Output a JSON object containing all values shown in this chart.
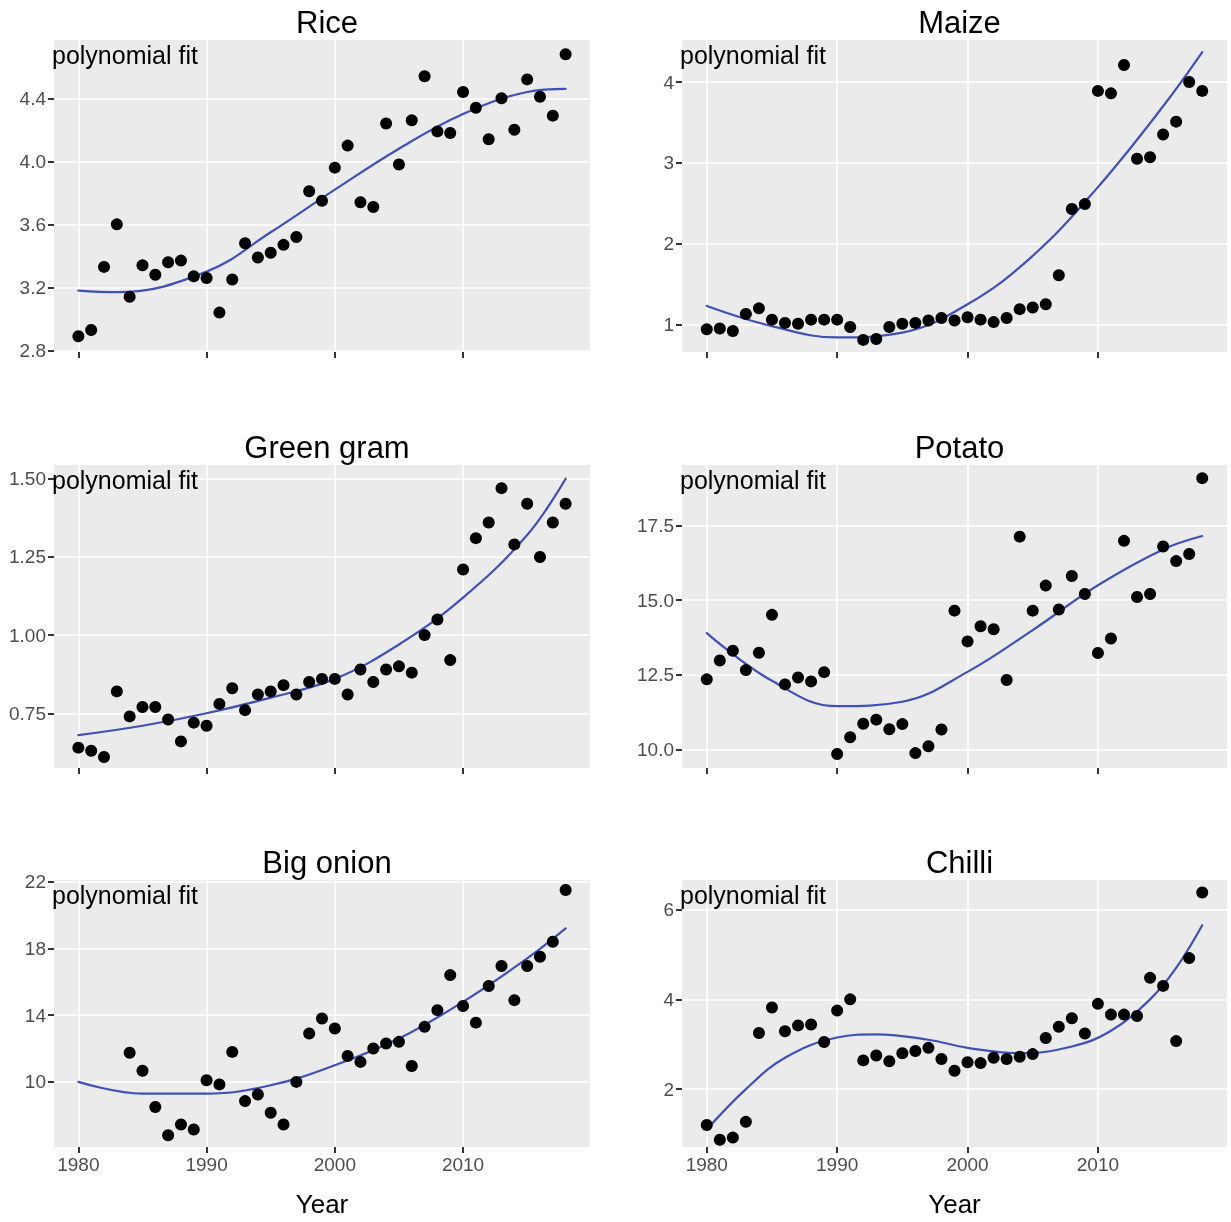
{
  "chart_data": [
    {
      "type": "scatter",
      "title": "Rice",
      "annotations": [
        "polynomial fit"
      ],
      "grid": true,
      "tick_labels": "y",
      "xlim": [
        1978.1,
        2019.9
      ],
      "ylim": [
        2.79,
        4.77
      ],
      "xticks": [
        {
          "value": 1980,
          "label": null
        },
        {
          "value": 1990,
          "label": null
        },
        {
          "value": 2000,
          "label": null
        },
        {
          "value": 2010,
          "label": null
        }
      ],
      "yticks": [
        2.8,
        3.2,
        3.6,
        {
          "value": 4,
          "label": "4.0"
        },
        4.4
      ],
      "series": [
        {
          "marker": "circle",
          "color": "#000000",
          "x": [
            1980,
            1981,
            1982,
            1983,
            1984,
            1985,
            1986,
            1987,
            1988,
            1989,
            1990,
            1991,
            1992,
            1993,
            1994,
            1995,
            1996,
            1997,
            1998,
            1999,
            2000,
            2001,
            2002,
            2003,
            2004,
            2005,
            2006,
            2007,
            2008,
            2009,
            2010,
            2011,
            2012,
            2013,
            2014,
            2015,
            2016,
            2017,
            2018
          ],
          "values": [
            2.89,
            2.93,
            3.33,
            3.6,
            3.14,
            3.34,
            3.28,
            3.36,
            3.37,
            3.27,
            3.26,
            3.04,
            3.25,
            3.48,
            3.39,
            3.42,
            3.47,
            3.52,
            3.81,
            3.75,
            3.96,
            4.1,
            3.74,
            3.71,
            4.24,
            3.98,
            4.26,
            4.54,
            4.19,
            4.18,
            4.44,
            4.34,
            4.14,
            4.4,
            4.2,
            4.52,
            4.41,
            4.29,
            4.68
          ]
        },
        {
          "type": "line",
          "marker": "none",
          "color": "#3f51b5",
          "x": [
            1980,
            1983,
            1990,
            1995,
            2000,
            2005,
            2010,
            2015,
            2018
          ],
          "values": [
            3.18,
            3.17,
            3.3,
            3.55,
            3.82,
            4.08,
            4.3,
            4.44,
            4.46
          ]
        }
      ]
    },
    {
      "type": "scatter",
      "title": "Maize",
      "annotations": [
        "polynomial fit"
      ],
      "grid": true,
      "tick_labels": "y",
      "xlim": [
        1978.1,
        2019.9
      ],
      "ylim": [
        0.66,
        4.52
      ],
      "xticks": [
        {
          "value": 1980,
          "label": null
        },
        {
          "value": 1990,
          "label": null
        },
        {
          "value": 2000,
          "label": null
        },
        {
          "value": 2010,
          "label": null
        }
      ],
      "yticks": [
        1,
        2,
        3,
        4
      ],
      "series": [
        {
          "marker": "circle",
          "color": "#000000",
          "x": [
            1980,
            1981,
            1982,
            1983,
            1984,
            1985,
            1986,
            1987,
            1988,
            1989,
            1990,
            1991,
            1992,
            1993,
            1994,
            1995,
            1996,
            1997,
            1998,
            1999,
            2000,
            2001,
            2002,
            2003,
            2004,
            2005,
            2006,
            2007,
            2008,
            2009,
            2010,
            2011,
            2012,
            2013,
            2014,
            2015,
            2016,
            2017,
            2018
          ],
          "values": [
            0.94,
            0.95,
            0.92,
            1.13,
            1.2,
            1.06,
            1.02,
            1.01,
            1.06,
            1.06,
            1.06,
            0.97,
            0.81,
            0.82,
            0.97,
            1.01,
            1.02,
            1.05,
            1.08,
            1.05,
            1.09,
            1.06,
            1.03,
            1.08,
            1.19,
            1.21,
            1.25,
            1.61,
            2.43,
            2.49,
            3.89,
            3.86,
            4.21,
            3.05,
            3.07,
            3.35,
            3.51,
            4.0,
            3.89
          ]
        },
        {
          "type": "line",
          "marker": "none",
          "color": "#3f51b5",
          "x": [
            1980,
            1985,
            1990,
            1995,
            2000,
            2005,
            2010,
            2015,
            2018
          ],
          "values": [
            1.23,
            0.98,
            0.84,
            0.9,
            1.25,
            1.85,
            2.7,
            3.7,
            4.37
          ]
        }
      ]
    },
    {
      "type": "scatter",
      "title": "Green gram",
      "annotations": [
        "polynomial fit"
      ],
      "grid": true,
      "tick_labels": "y",
      "xlim": [
        1978.1,
        2019.9
      ],
      "ylim": [
        0.575,
        1.544
      ],
      "xticks": [
        {
          "value": 1980,
          "label": null
        },
        {
          "value": 1990,
          "label": null
        },
        {
          "value": 2000,
          "label": null
        },
        {
          "value": 2010,
          "label": null
        }
      ],
      "yticks": [
        {
          "value": 0.75,
          "label": "0.75"
        },
        {
          "value": 1,
          "label": "1.00"
        },
        {
          "value": 1.25,
          "label": "1.25"
        },
        {
          "value": 1.5,
          "label": "1.50"
        }
      ],
      "series": [
        {
          "marker": "circle",
          "color": "#000000",
          "x": [
            1980,
            1981,
            1982,
            1983,
            1984,
            1985,
            1986,
            1987,
            1988,
            1989,
            1990,
            1991,
            1992,
            1993,
            1994,
            1995,
            1996,
            1997,
            1998,
            1999,
            2000,
            2001,
            2002,
            2003,
            2004,
            2005,
            2006,
            2007,
            2008,
            2009,
            2010,
            2011,
            2012,
            2013,
            2014,
            2015,
            2016,
            2017,
            2018
          ],
          "values": [
            0.64,
            0.63,
            0.61,
            0.82,
            0.74,
            0.77,
            0.77,
            0.73,
            0.66,
            0.72,
            0.71,
            0.78,
            0.83,
            0.76,
            0.81,
            0.82,
            0.84,
            0.81,
            0.85,
            0.86,
            0.86,
            0.81,
            0.89,
            0.85,
            0.89,
            0.9,
            0.88,
            1.0,
            1.05,
            0.92,
            1.21,
            1.31,
            1.36,
            1.47,
            1.29,
            1.42,
            1.25,
            1.36,
            1.42
          ]
        },
        {
          "type": "line",
          "marker": "none",
          "color": "#3f51b5",
          "x": [
            1980,
            1985,
            1990,
            1995,
            2000,
            2005,
            2010,
            2015,
            2018
          ],
          "values": [
            0.68,
            0.71,
            0.75,
            0.8,
            0.86,
            0.97,
            1.12,
            1.32,
            1.5
          ]
        }
      ]
    },
    {
      "type": "scatter",
      "title": "Potato",
      "annotations": [
        "polynomial fit"
      ],
      "grid": true,
      "tick_labels": "y",
      "xlim": [
        1978.1,
        2019.9
      ],
      "ylim": [
        9.38,
        19.53
      ],
      "xticks": [
        {
          "value": 1980,
          "label": null
        },
        {
          "value": 1990,
          "label": null
        },
        {
          "value": 2000,
          "label": null
        },
        {
          "value": 2010,
          "label": null
        }
      ],
      "yticks": [
        {
          "value": 10,
          "label": "10.0"
        },
        {
          "value": 12.5,
          "label": "12.5"
        },
        {
          "value": 15,
          "label": "15.0"
        },
        {
          "value": 17.5,
          "label": "17.5"
        }
      ],
      "series": [
        {
          "marker": "circle",
          "color": "#000000",
          "x": [
            1980,
            1981,
            1982,
            1983,
            1984,
            1985,
            1986,
            1987,
            1988,
            1989,
            1990,
            1991,
            1992,
            1993,
            1994,
            1995,
            1996,
            1997,
            1998,
            1999,
            2000,
            2001,
            2002,
            2003,
            2004,
            2005,
            2006,
            2007,
            2008,
            2009,
            2010,
            2011,
            2012,
            2013,
            2014,
            2015,
            2016,
            2017,
            2018
          ],
          "values": [
            12.35,
            12.98,
            13.31,
            12.66,
            13.24,
            14.51,
            12.18,
            12.41,
            12.28,
            12.59,
            9.85,
            10.41,
            10.86,
            11.0,
            10.68,
            10.85,
            9.88,
            10.11,
            10.67,
            14.65,
            13.62,
            14.13,
            14.03,
            12.33,
            17.13,
            14.65,
            15.49,
            14.69,
            15.81,
            15.21,
            13.23,
            13.72,
            16.99,
            15.11,
            15.21,
            16.8,
            16.31,
            16.55,
            19.09
          ]
        },
        {
          "type": "line",
          "marker": "none",
          "color": "#3f51b5",
          "x": [
            1980,
            1985,
            1990,
            1995,
            2000,
            2005,
            2010,
            2015,
            2018
          ],
          "values": [
            13.9,
            12.3,
            11.45,
            11.6,
            12.6,
            14.0,
            15.5,
            16.7,
            17.15
          ]
        }
      ]
    },
    {
      "type": "scatter",
      "title": "Big onion",
      "xlabel": "Year",
      "annotations": [
        "polynomial fit"
      ],
      "grid": true,
      "xlim": [
        1978.1,
        2019.9
      ],
      "ylim": [
        6.1,
        22.1
      ],
      "xticks": [
        1980,
        1990,
        2000,
        2010
      ],
      "yticks": [
        10,
        14,
        18,
        22
      ],
      "series": [
        {
          "marker": "circle",
          "color": "#000000",
          "x": [
            1984,
            1985,
            1986,
            1987,
            1988,
            1989,
            1990,
            1991,
            1992,
            1993,
            1994,
            1995,
            1996,
            1997,
            1998,
            1999,
            2000,
            2001,
            2002,
            2003,
            2004,
            2005,
            2006,
            2007,
            2008,
            2009,
            2010,
            2011,
            2012,
            2013,
            2014,
            2015,
            2016,
            2017,
            2018
          ],
          "values": [
            11.75,
            10.67,
            8.5,
            6.8,
            7.45,
            7.15,
            10.1,
            9.85,
            11.8,
            8.85,
            9.25,
            8.15,
            7.45,
            10.0,
            12.9,
            13.8,
            13.2,
            11.55,
            11.2,
            12.0,
            12.3,
            12.4,
            10.95,
            13.3,
            14.3,
            16.4,
            14.55,
            13.55,
            15.75,
            16.95,
            14.9,
            16.95,
            17.5,
            18.4,
            21.5
          ]
        },
        {
          "type": "line",
          "marker": "none",
          "color": "#3f51b5",
          "x": [
            1980,
            1985,
            1990,
            1995,
            2000,
            2005,
            2010,
            2015,
            2018
          ],
          "values": [
            10.0,
            9.3,
            9.3,
            9.8,
            11.0,
            12.6,
            14.8,
            17.4,
            19.2
          ]
        }
      ]
    },
    {
      "type": "scatter",
      "title": "Chilli",
      "xlabel": "Year",
      "annotations": [
        "polynomial fit"
      ],
      "grid": true,
      "xlim": [
        1978.1,
        2019.9
      ],
      "ylim": [
        0.71,
        6.66
      ],
      "xticks": [
        1980,
        1990,
        2000,
        2010
      ],
      "yticks": [
        2,
        4,
        6
      ],
      "series": [
        {
          "marker": "circle",
          "color": "#000000",
          "x": [
            1980,
            1981,
            1982,
            1983,
            1984,
            1985,
            1986,
            1987,
            1988,
            1989,
            1990,
            1991,
            1992,
            1993,
            1994,
            1995,
            1996,
            1997,
            1998,
            1999,
            2000,
            2001,
            2002,
            2003,
            2004,
            2005,
            2006,
            2007,
            2008,
            2009,
            2010,
            2011,
            2012,
            2013,
            2014,
            2015,
            2016,
            2017,
            2018
          ],
          "values": [
            1.2,
            0.87,
            0.92,
            1.27,
            3.25,
            3.82,
            3.29,
            3.42,
            3.44,
            3.05,
            3.75,
            4.0,
            2.64,
            2.75,
            2.62,
            2.8,
            2.85,
            2.92,
            2.67,
            2.41,
            2.6,
            2.58,
            2.7,
            2.67,
            2.72,
            2.78,
            3.14,
            3.39,
            3.58,
            3.24,
            3.9,
            3.66,
            3.66,
            3.63,
            4.48,
            4.3,
            3.07,
            4.92,
            6.38
          ]
        },
        {
          "type": "line",
          "marker": "none",
          "color": "#3f51b5",
          "x": [
            1980,
            1983,
            1986,
            1990,
            1993,
            1997,
            2000,
            2004,
            2008,
            2011,
            2014,
            2016,
            2018
          ],
          "values": [
            1.1,
            2.0,
            2.7,
            3.15,
            3.22,
            3.1,
            2.92,
            2.8,
            2.95,
            3.3,
            4.0,
            4.7,
            5.65
          ]
        }
      ]
    }
  ]
}
